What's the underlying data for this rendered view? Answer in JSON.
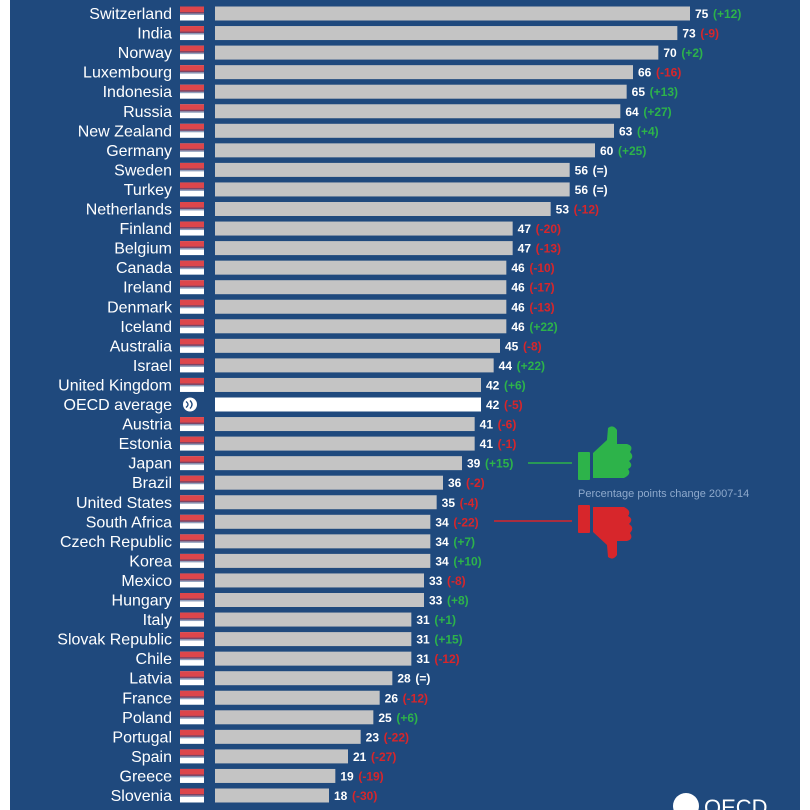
{
  "colors": {
    "background": "#1f497d",
    "bar": "#c4c4c4",
    "oecd_bar": "#ffffff",
    "positive": "#2db34a",
    "negative": "#d7262b",
    "neutral": "#ffffff",
    "text": "#ffffff"
  },
  "legend": {
    "caption": "Percentage points change 2007-14",
    "up_icon": "thumbs-up-icon",
    "down_icon": "thumbs-down-icon"
  },
  "logo": {
    "text": "OECD"
  },
  "chart_data": {
    "type": "bar",
    "orientation": "horizontal",
    "title": "",
    "xlabel": "",
    "ylabel": "",
    "grid": false,
    "xlim": [
      0,
      75
    ],
    "categories": [
      "Switzerland",
      "India",
      "Norway",
      "Luxembourg",
      "Indonesia",
      "Russia",
      "New Zealand",
      "Germany",
      "Sweden",
      "Turkey",
      "Netherlands",
      "Finland",
      "Belgium",
      "Canada",
      "Ireland",
      "Denmark",
      "Iceland",
      "Australia",
      "Israel",
      "United Kingdom",
      "OECD average",
      "Austria",
      "Estonia",
      "Japan",
      "Brazil",
      "United States",
      "South Africa",
      "Czech Republic",
      "Korea",
      "Mexico",
      "Hungary",
      "Italy",
      "Slovak Republic",
      "Chile",
      "Latvia",
      "France",
      "Poland",
      "Portugal",
      "Spain",
      "Greece",
      "Slovenia"
    ],
    "values": [
      75,
      73,
      70,
      66,
      65,
      64,
      63,
      60,
      56,
      56,
      53,
      47,
      47,
      46,
      46,
      46,
      46,
      45,
      44,
      42,
      42,
      41,
      41,
      39,
      36,
      35,
      34,
      34,
      34,
      33,
      33,
      31,
      31,
      31,
      28,
      26,
      25,
      23,
      21,
      19,
      18
    ],
    "changes": [
      "(+12)",
      "(-9)",
      "(+2)",
      "(-16)",
      "(+13)",
      "(+27)",
      "(+4)",
      "(+25)",
      "(=)",
      "(=)",
      "(-12)",
      "(-20)",
      "(-13)",
      "(-10)",
      "(-17)",
      "(-13)",
      "(+22)",
      "(-8)",
      "(+22)",
      "(+6)",
      "(-5)",
      "(-6)",
      "(-1)",
      "(+15)",
      "(-2)",
      "(-4)",
      "(-22)",
      "(+7)",
      "(+10)",
      "(-8)",
      "(+8)",
      "(+1)",
      "(+15)",
      "(-12)",
      "(=)",
      "(-12)",
      "(+6)",
      "(-22)",
      "(-27)",
      "(-19)",
      "(-30)"
    ],
    "highlight": "OECD average",
    "annotations": [
      {
        "category": "Japan",
        "icon": "thumbs-up-icon",
        "meaning": "positive change"
      },
      {
        "category": "South Africa",
        "icon": "thumbs-down-icon",
        "meaning": "negative change"
      }
    ]
  }
}
